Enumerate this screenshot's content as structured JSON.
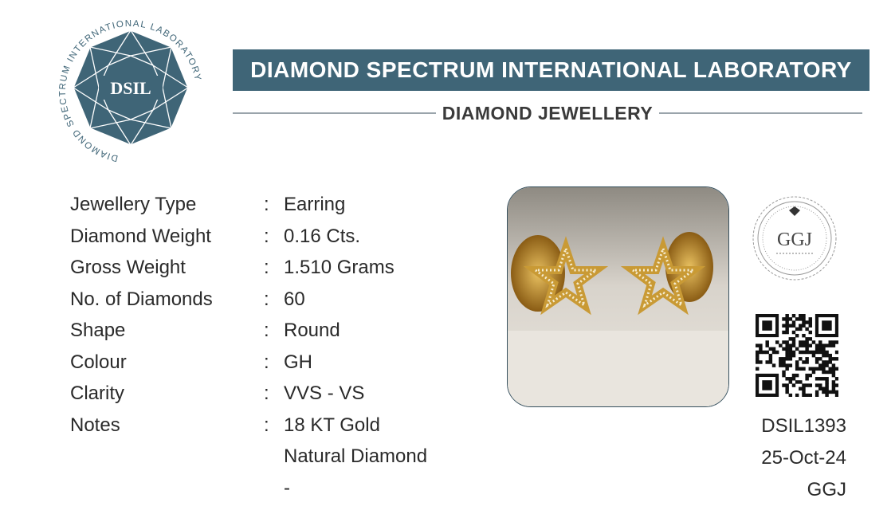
{
  "header": {
    "logo_ring_text": "DIAMOND SPECTRUM INTERNATIONAL LABORATORY",
    "logo_center_text": "DSIL",
    "banner_title": "DIAMOND SPECTRUM INTERNATIONAL LABORATORY",
    "subtitle": "DIAMOND JEWELLERY"
  },
  "details": [
    {
      "label": "Jewellery Type",
      "colon": ":",
      "value": "Earring"
    },
    {
      "label": "Diamond Weight",
      "colon": ":",
      "value": "0.16 Cts."
    },
    {
      "label": "Gross Weight",
      "colon": ":",
      "value": "1.510 Grams"
    },
    {
      "label": "No. of Diamonds",
      "colon": ":",
      "value": "60"
    },
    {
      "label": "Shape",
      "colon": ":",
      "value": "Round"
    },
    {
      "label": "Colour",
      "colon": ":",
      "value": "GH"
    },
    {
      "label": "Clarity",
      "colon": ":",
      "value": "VVS - VS"
    },
    {
      "label": "Notes",
      "colon": ":",
      "value": "18  KT Gold"
    },
    {
      "label": "",
      "colon": "",
      "value": "Natural Diamond"
    },
    {
      "label": "",
      "colon": "",
      "value": "-"
    }
  ],
  "stamp": {
    "text": "GGJ"
  },
  "report": {
    "number": "DSIL1393",
    "date": "25-Oct-24",
    "issuer": "GGJ"
  },
  "colors": {
    "brand": "#3f6577",
    "rule": "#9aa4ab",
    "gold": "#c99a35"
  },
  "icons": {
    "logo": "dsil-diamond-logo-icon",
    "qr": "qr-code-icon",
    "stamp": "ggj-seal-icon",
    "photo": "star-earrings-photo"
  }
}
